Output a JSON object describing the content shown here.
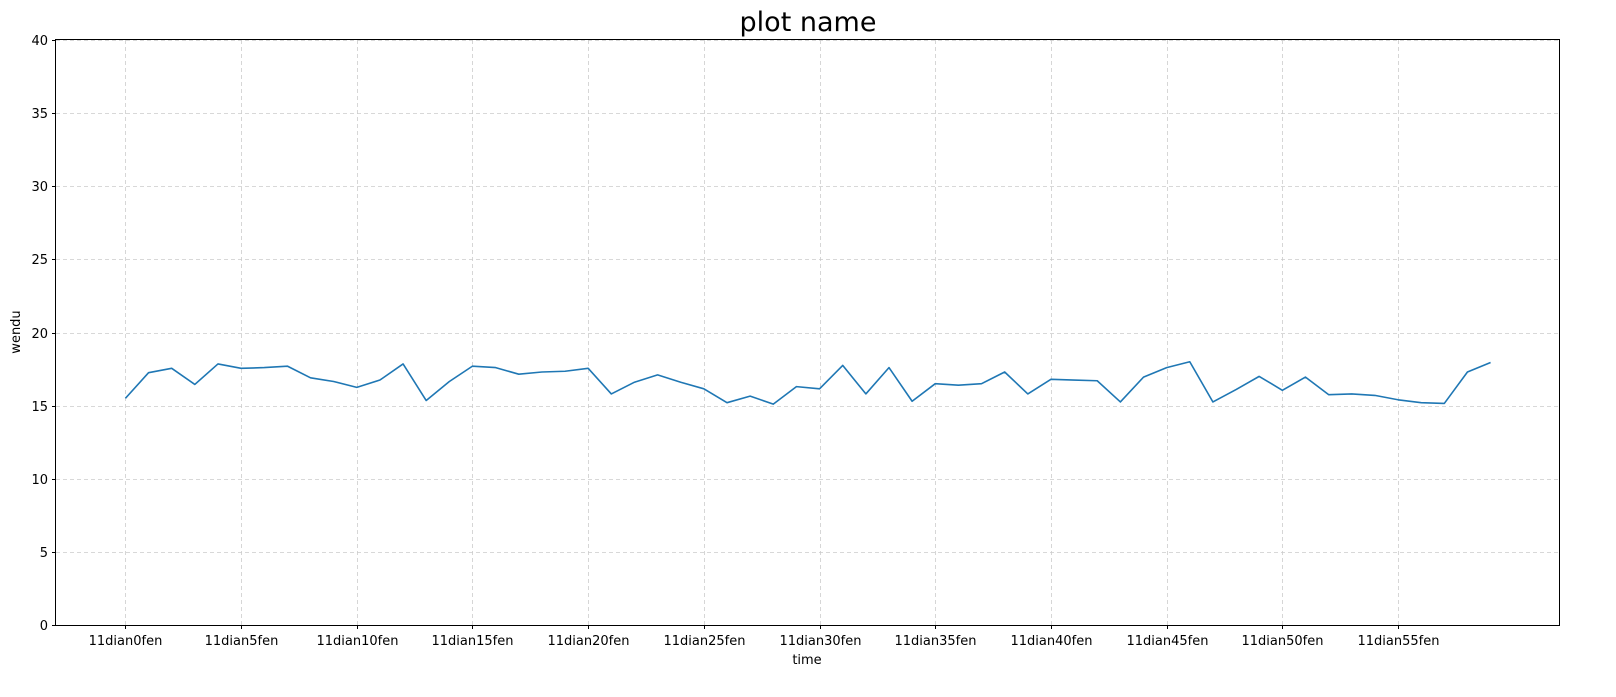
{
  "chart_data": {
    "type": "line",
    "title": "plot name",
    "xlabel": "time",
    "ylabel": "wendu",
    "ylim": [
      0,
      40
    ],
    "yticks": [
      0,
      5,
      10,
      15,
      20,
      25,
      30,
      35,
      40
    ],
    "x_tick_labels": [
      "11dian0fen",
      "11dian5fen",
      "11dian10fen",
      "11dian15fen",
      "11dian20fen",
      "11dian25fen",
      "11dian30fen",
      "11dian35fen",
      "11dian40fen",
      "11dian45fen",
      "11dian50fen",
      "11dian55fen"
    ],
    "x_tick_positions": [
      0,
      5,
      10,
      15,
      20,
      25,
      30,
      35,
      40,
      45,
      50,
      55
    ],
    "x_range": [
      -3,
      62
    ],
    "grid": true,
    "colors": {
      "line": "#1f77b4",
      "grid": "#cccccc"
    },
    "series": [
      {
        "values": [
          15.5,
          17.25,
          17.55,
          16.45,
          17.85,
          17.55,
          17.6,
          17.7,
          16.9,
          16.65,
          16.25,
          16.75,
          17.85,
          15.35,
          16.65,
          17.7,
          17.6,
          17.15,
          17.3,
          17.35,
          17.55,
          15.8,
          16.6,
          17.1,
          16.6,
          16.15,
          15.2,
          15.65,
          15.1,
          16.3,
          16.15,
          17.75,
          15.8,
          17.6,
          15.3,
          16.5,
          16.4,
          16.5,
          17.3,
          15.8,
          16.8,
          16.75,
          16.7,
          15.25,
          16.95,
          17.6,
          18.0,
          15.25,
          16.1,
          17.0,
          16.05,
          16.95,
          15.75,
          15.8,
          15.7,
          15.4,
          15.2,
          15.15,
          17.3,
          17.95
        ]
      }
    ]
  }
}
